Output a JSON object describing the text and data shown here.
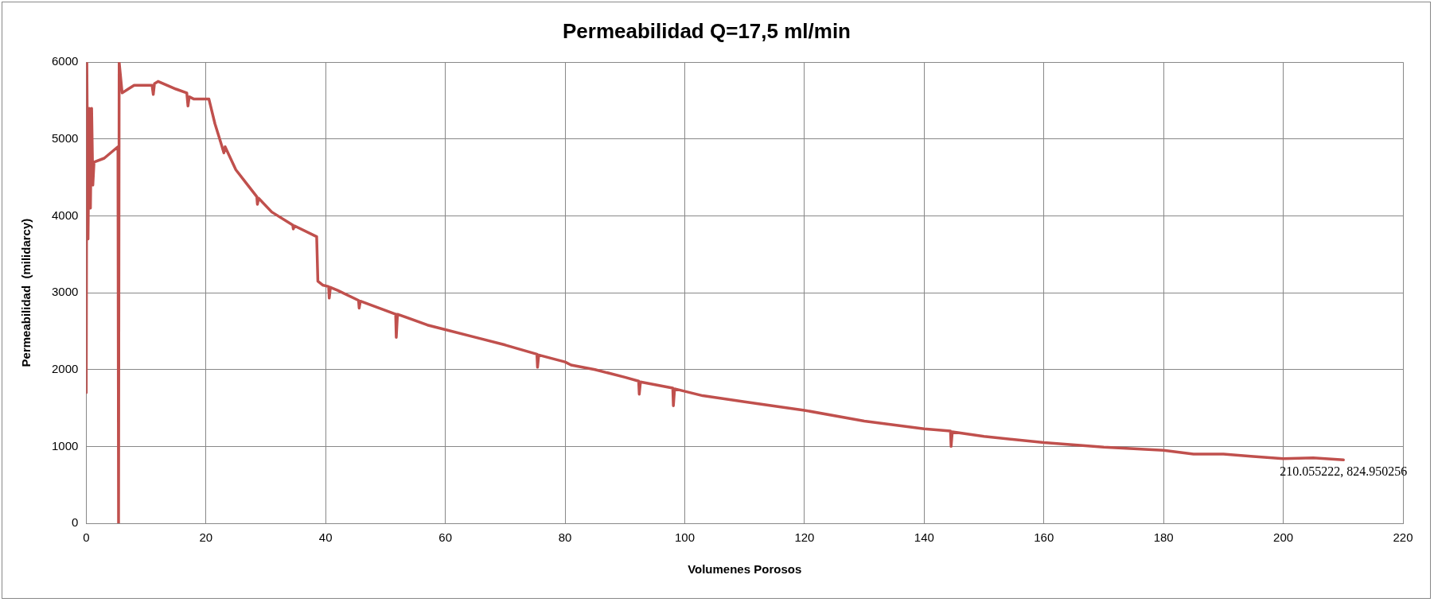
{
  "chart_data": {
    "type": "line",
    "title": "Permeabilidad Q=17,5 ml/min",
    "xlabel": "Volumenes Porosos",
    "ylabel": "Permeabilidad  (milidarcy)",
    "x": [
      0,
      0.1,
      0.3,
      0.5,
      0.7,
      0.9,
      1.1,
      1.3,
      3,
      5.3,
      5.4,
      5.5,
      6,
      7,
      8,
      11,
      11.2,
      11.4,
      12,
      15,
      16.8,
      17,
      17.2,
      18,
      20.5,
      21.5,
      22.5,
      23,
      23.2,
      25,
      27,
      28.5,
      28.6,
      28.8,
      31,
      34.5,
      34.6,
      34.8,
      38.5,
      38.7,
      39.5,
      40.5,
      40.6,
      40.8,
      42,
      45.5,
      45.6,
      45.8,
      51.7,
      51.8,
      52,
      57,
      60,
      65,
      70,
      75.3,
      75.4,
      75.6,
      80,
      81,
      85,
      90,
      92.3,
      92.4,
      92.6,
      98,
      98.1,
      98.3,
      103,
      110,
      120,
      130,
      140,
      144.4,
      144.5,
      144.7,
      150,
      160,
      170,
      180,
      185,
      190,
      195,
      200,
      205,
      210.055222
    ],
    "series": [
      {
        "color": "#c0504d",
        "values": [
          1700,
          6000,
          3700,
          5400,
          4100,
          5400,
          4400,
          4700,
          4750,
          4900,
          0,
          6000,
          5600,
          5650,
          5700,
          5700,
          5580,
          5720,
          5750,
          5650,
          5600,
          5430,
          5550,
          5520,
          5520,
          5200,
          4950,
          4820,
          4900,
          4600,
          4400,
          4250,
          4150,
          4230,
          4050,
          3880,
          3830,
          3870,
          3730,
          3150,
          3100,
          3080,
          2930,
          3070,
          3030,
          2900,
          2800,
          2890,
          2720,
          2420,
          2720,
          2580,
          2520,
          2420,
          2320,
          2200,
          2030,
          2190,
          2100,
          2060,
          2000,
          1900,
          1850,
          1680,
          1840,
          1760,
          1530,
          1750,
          1660,
          1580,
          1470,
          1330,
          1230,
          1200,
          1000,
          1190,
          1130,
          1050,
          990,
          950,
          900,
          900,
          870,
          840,
          850,
          824.950256
        ]
      }
    ],
    "xlim": [
      0,
      220
    ],
    "xticks": [
      0,
      20,
      40,
      60,
      80,
      100,
      120,
      140,
      160,
      180,
      200,
      220
    ],
    "ylim": [
      0,
      6000
    ],
    "yticks": [
      0,
      1000,
      2000,
      3000,
      4000,
      5000,
      6000
    ],
    "grid": true,
    "legend": false,
    "marker": "none",
    "line_style": "solid",
    "annotations": [
      {
        "text": "210.055222, 824.950256",
        "x": 210.055222,
        "y": 824.950256
      }
    ]
  }
}
